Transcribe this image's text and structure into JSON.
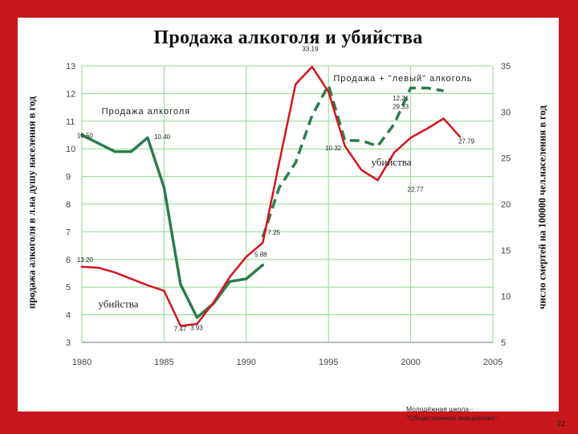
{
  "slide": {
    "title": "Продажа алкоголя и убийства",
    "footer_line1": "Молодёжная школа -",
    "footer_line2": "\"Общественная инициатива\".",
    "page_number": "22"
  },
  "colors": {
    "frame": "#c8161d",
    "sales_line": "#2e7d4f",
    "murders_line": "#d8141c",
    "grid": "#8fd88f"
  },
  "chart_data": {
    "type": "line",
    "title": "Продажа алкоголя и убийства",
    "ylabel_left": "продажа алкоголя в л.на душу населения в год",
    "ylabel_right": "число смертей на 100000 чел.населения в год",
    "xlabel": "",
    "xlim": [
      1980,
      2005
    ],
    "ylim_left": [
      3,
      13
    ],
    "ylim_right": [
      5,
      35
    ],
    "grid": true,
    "x_ticks": [
      "1980",
      "1985",
      "1990",
      "1995",
      "2000",
      "2005"
    ],
    "y_ticks_left": [
      "13",
      "12",
      "11",
      "10",
      "9",
      "8",
      "7",
      "6",
      "5",
      "4",
      "3"
    ],
    "y_ticks_right": [
      "35",
      "30",
      "25",
      "20",
      "15",
      "10",
      "5"
    ],
    "series": [
      {
        "name": "Продажа алкоголя",
        "axis": "left",
        "style": "solid",
        "x": [
          1980,
          1981,
          1982,
          1983,
          1984,
          1985,
          1986,
          1987,
          1988,
          1989,
          1990,
          1991
        ],
        "y": [
          10.5,
          10.2,
          9.9,
          9.9,
          10.4,
          8.6,
          5.1,
          3.9,
          4.4,
          5.2,
          5.3,
          5.8
        ]
      },
      {
        "name": "Продажа + \"левый\" алкоголь",
        "axis": "left",
        "style": "dashed",
        "x": [
          1991,
          1992,
          1993,
          1994,
          1995,
          1996,
          1997,
          1998,
          1999,
          2000,
          2001,
          2002
        ],
        "y": [
          6.8,
          8.6,
          9.5,
          11.2,
          12.3,
          10.3,
          10.3,
          10.1,
          10.9,
          12.2,
          12.2,
          12.1
        ]
      },
      {
        "name": "убийства",
        "axis": "right",
        "style": "solid",
        "x": [
          1980,
          1981,
          1982,
          1983,
          1984,
          1985,
          1986,
          1987,
          1988,
          1989,
          1990,
          1991,
          1992,
          1993,
          1994,
          1995,
          1996,
          1997,
          1998,
          1999,
          2000,
          2001,
          2002,
          2003
        ],
        "y": [
          13.2,
          13.1,
          12.6,
          11.9,
          11.2,
          10.6,
          6.8,
          7.0,
          9.3,
          12.1,
          14.3,
          15.8,
          24.5,
          33.0,
          34.9,
          32.2,
          26.3,
          23.7,
          22.6,
          25.6,
          27.2,
          28.2,
          29.3,
          27.3
        ]
      }
    ],
    "annotations": [
      "10.50",
      "10.40",
      "33.19",
      "12.21",
      "29.33",
      "10.32",
      "27.79",
      "22.77",
      "7.25",
      "5.88",
      "13.20",
      "7.47",
      "3.93"
    ],
    "series_labels": {
      "sales": "Продажа алкоголя",
      "left_alcohol": "Продажа + \"левый\" алкоголь",
      "murders_top": "убийства",
      "murders_bottom": "убийства"
    }
  }
}
